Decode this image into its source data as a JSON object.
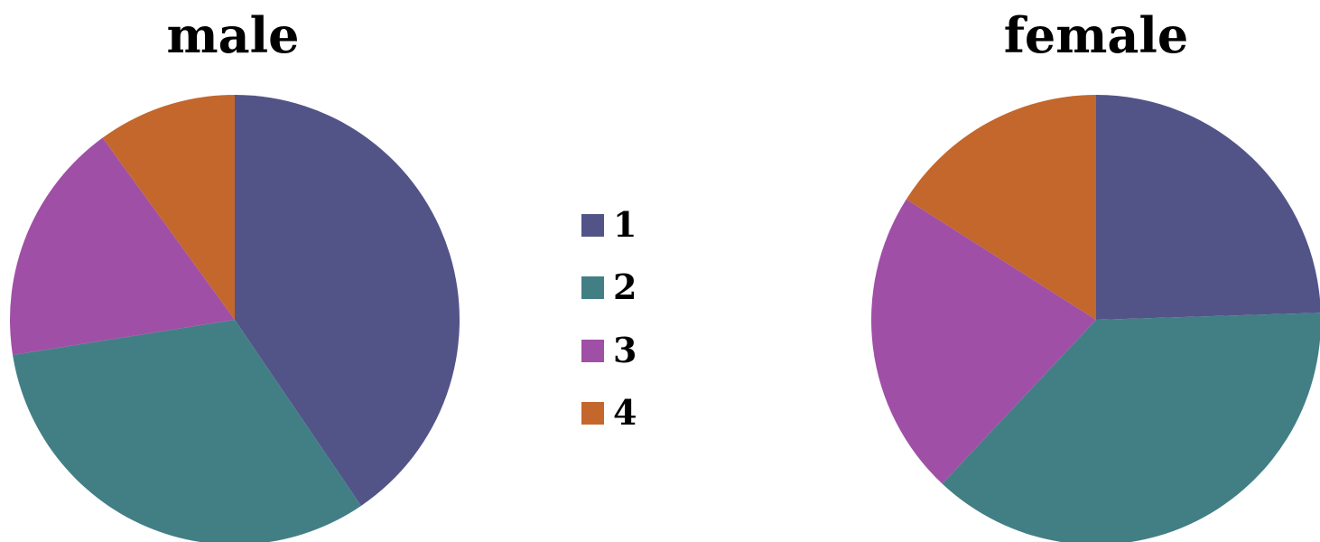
{
  "chart_data": [
    {
      "type": "pie",
      "title": "male",
      "categories": [
        "1",
        "2",
        "3",
        "4"
      ],
      "values": [
        40.5,
        32.0,
        17.5,
        10.0
      ],
      "start_angle_deg": 0,
      "direction": "clockwise"
    },
    {
      "type": "pie",
      "title": "female",
      "categories": [
        "1",
        "2",
        "3",
        "4"
      ],
      "values": [
        24.5,
        37.5,
        22.0,
        16.0
      ],
      "start_angle_deg": 0,
      "direction": "clockwise"
    }
  ],
  "legend": {
    "placement": "center",
    "items": [
      {
        "label": "1",
        "color": "#525488"
      },
      {
        "label": "2",
        "color": "#427F85"
      },
      {
        "label": "3",
        "color": "#A04FA6"
      },
      {
        "label": "4",
        "color": "#C3672D"
      }
    ]
  }
}
